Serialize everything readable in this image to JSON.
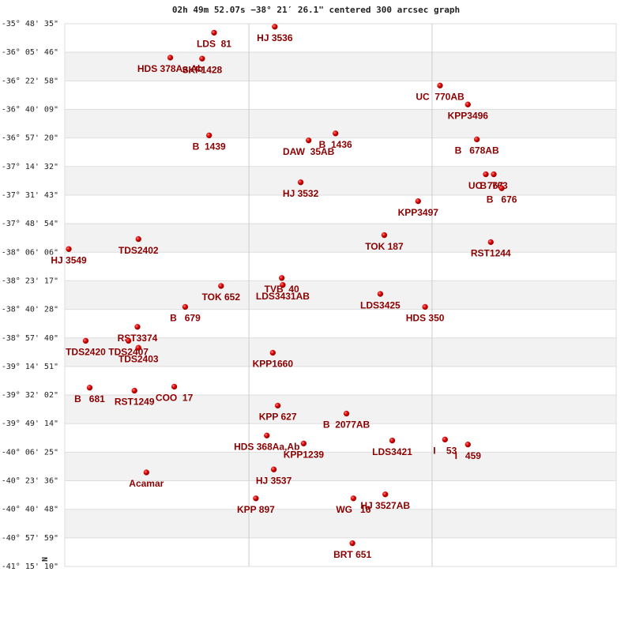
{
  "chart_data": {
    "type": "scatter",
    "title": "02h 49m 52.07s −38° 21′ 26.1\" centered 300 arcsec graph",
    "annotation": "N",
    "color": "#cc0000",
    "label_color": "#8b0000",
    "grid": true,
    "xlim": [
      -2.77,
      2.77
    ],
    "xticks": [
      -0.92,
      0.92
    ],
    "ylim": [
      -35.80972,
      -41.25278
    ],
    "yticks": [
      {
        "value": -35.80972,
        "label": "-35° 48' 35\""
      },
      {
        "value": -36.09611,
        "label": "-36° 05' 46\""
      },
      {
        "value": -36.38278,
        "label": "-36° 22' 58\""
      },
      {
        "value": -36.66917,
        "label": "-36° 40' 09\""
      },
      {
        "value": -36.95556,
        "label": "-36° 57' 20\""
      },
      {
        "value": -37.24222,
        "label": "-37° 14' 32\""
      },
      {
        "value": -37.52861,
        "label": "-37° 31' 43\""
      },
      {
        "value": -37.815,
        "label": "-37° 48' 54\""
      },
      {
        "value": -38.10167,
        "label": "-38° 06' 06\""
      },
      {
        "value": -38.38806,
        "label": "-38° 23' 17\""
      },
      {
        "value": -38.67444,
        "label": "-38° 40' 28\""
      },
      {
        "value": -38.96111,
        "label": "-38° 57' 40\""
      },
      {
        "value": -39.2475,
        "label": "-39° 14' 51\""
      },
      {
        "value": -39.53389,
        "label": "-39° 32' 02\""
      },
      {
        "value": -39.82056,
        "label": "-39° 49' 14\""
      },
      {
        "value": -40.10694,
        "label": "-40° 06' 25\""
      },
      {
        "value": -40.39333,
        "label": "-40° 23' 36\""
      },
      {
        "value": -40.68,
        "label": "-40° 40' 48\""
      },
      {
        "value": -40.96639,
        "label": "-40° 57' 59\""
      },
      {
        "value": -41.25278,
        "label": "-41° 15' 10\""
      }
    ],
    "labels": [
      "LDS  81",
      "HJ 3536",
      "HDS 378Aa,Ab",
      "SKF1428",
      "UC  770AB",
      "KPP3496",
      "B  1439",
      "DAW  35AB",
      "B  1436",
      "B   678AB",
      "UC  767",
      "B  763",
      "B   676",
      "HJ 3532",
      "KPP3497",
      "TOK 187",
      "RST1244",
      "HJ 3549",
      "TDS2402",
      "TVB  40",
      "LDS3431AB",
      "TOK 652",
      "LDS3425",
      "B   679",
      "HDS 350",
      "RST3374",
      "TDS2420",
      "TDS2407",
      "TDS2403",
      "KPP1660",
      "B   681",
      "RST1249",
      "COO  17",
      "KPP 627",
      "B  2077AB",
      "HDS 368Aa,Ab",
      "KPP1239",
      "LDS3421",
      "I    53",
      "I   459",
      "Acamar",
      "HJ 3537",
      "KPP 897",
      "WG   16",
      "HJ 3527AB",
      "BRT 651"
    ],
    "x": [
      -1.27,
      -0.66,
      -1.71,
      -1.39,
      1.0,
      1.28,
      -1.32,
      -0.32,
      -0.05,
      1.37,
      1.46,
      1.54,
      1.62,
      -0.4,
      0.78,
      0.44,
      1.51,
      -2.73,
      -2.03,
      -0.59,
      -0.58,
      -1.2,
      0.4,
      -1.56,
      0.85,
      -2.04,
      -2.56,
      -2.13,
      -2.03,
      -0.68,
      -2.52,
      -2.07,
      -1.67,
      -0.63,
      0.06,
      -0.74,
      -0.37,
      0.52,
      1.05,
      1.28,
      -1.95,
      -0.67,
      -0.85,
      0.13,
      0.45,
      0.12
    ],
    "values": [
      -35.9,
      -35.84,
      -36.15,
      -36.16,
      -36.43,
      -36.62,
      -36.93,
      -36.98,
      -36.91,
      -36.97,
      -37.32,
      -37.32,
      -37.46,
      -37.4,
      -37.59,
      -37.93,
      -38.0,
      -38.07,
      -37.97,
      -38.36,
      -38.43,
      -38.44,
      -38.52,
      -38.65,
      -38.65,
      -38.85,
      -38.99,
      -38.99,
      -39.06,
      -39.11,
      -39.46,
      -39.49,
      -39.45,
      -39.64,
      -39.72,
      -39.94,
      -40.02,
      -39.99,
      -39.98,
      -40.03,
      -40.31,
      -40.28,
      -40.57,
      -40.57,
      -40.53,
      -41.02
    ]
  }
}
